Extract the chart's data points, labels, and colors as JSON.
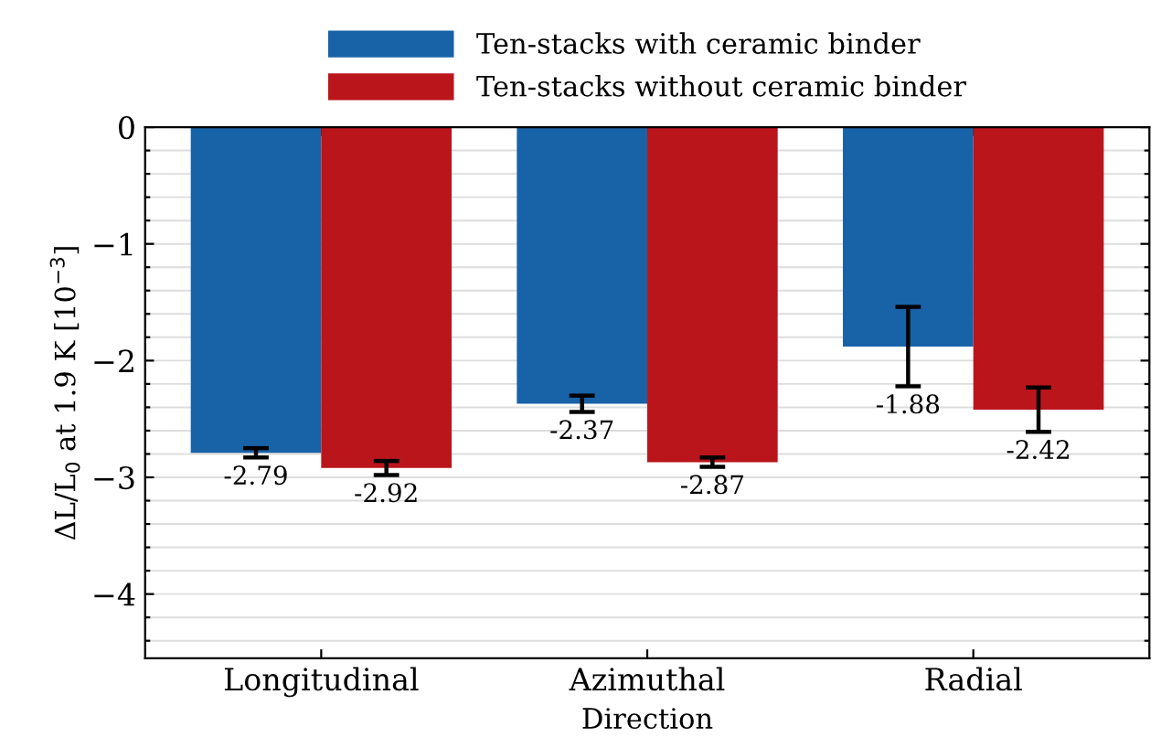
{
  "chart_data": {
    "type": "bar",
    "xlabel": "Direction",
    "ylabel": "ΔL/L$_{0}$ at 1.9 K [10$^{−3}$]",
    "categories": [
      "Longitudinal",
      "Azimuthal",
      "Radial"
    ],
    "series": [
      {
        "name": "Ten-stacks with ceramic binder",
        "color": "#1862a8",
        "values": [
          -2.79,
          -2.37,
          -1.88
        ],
        "errors": [
          0.04,
          0.07,
          0.34
        ]
      },
      {
        "name": "Ten-stacks without ceramic binder",
        "color": "#bb151c",
        "values": [
          -2.92,
          -2.87,
          -2.42
        ],
        "errors": [
          0.06,
          0.04,
          0.19
        ]
      }
    ],
    "ylim": [
      -4.55,
      0
    ],
    "yticks": [
      0,
      {
        "value": -0.2,
        "label": null
      },
      {
        "value": -0.4,
        "label": null
      },
      {
        "value": -0.6,
        "label": null
      },
      {
        "value": -0.8,
        "label": null
      },
      {
        "value": -1,
        "label": "−1"
      },
      {
        "value": -1.2,
        "label": null
      },
      {
        "value": -1.4,
        "label": null
      },
      {
        "value": -1.6,
        "label": null
      },
      {
        "value": -1.8,
        "label": null
      },
      {
        "value": -2,
        "label": "−2"
      },
      {
        "value": -2.2,
        "label": null
      },
      {
        "value": -2.4,
        "label": null
      },
      {
        "value": -2.6,
        "label": null
      },
      {
        "value": -2.8,
        "label": null
      },
      {
        "value": -3,
        "label": "−3"
      },
      {
        "value": -3.2,
        "label": null
      },
      {
        "value": -3.4,
        "label": null
      },
      {
        "value": -3.6,
        "label": null
      },
      {
        "value": -3.8,
        "label": null
      },
      {
        "value": -4,
        "label": "−4"
      },
      {
        "value": -4.2,
        "label": null
      },
      {
        "value": -4.4,
        "label": null
      }
    ],
    "grid": "y",
    "legend": "top",
    "data_labels": true
  }
}
